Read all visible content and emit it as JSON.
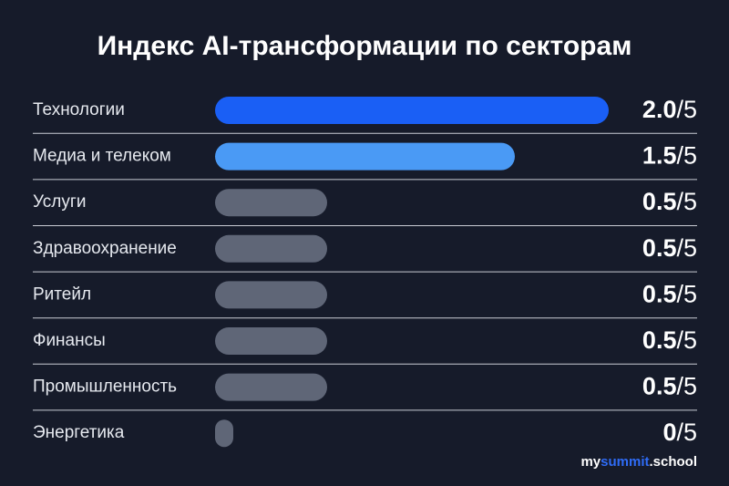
{
  "chart_data": {
    "type": "hbar",
    "title": "Индекс AI-трансформации по секторам",
    "categories": [
      "Технологии",
      "Медиа и телеком",
      "Услуги",
      "Здравоохранение",
      "Ритейл",
      "Финансы",
      "Промышленность",
      "Энергетика"
    ],
    "values": [
      2.0,
      1.5,
      0.5,
      0.5,
      0.5,
      0.5,
      0.5,
      0
    ],
    "value_labels": [
      "2.0",
      "1.5",
      "0.5",
      "0.5",
      "0.5",
      "0.5",
      "0.5",
      "0"
    ],
    "denominator": "/5",
    "colors": [
      "#1a5ff5",
      "#4a9af5",
      "#5f6677",
      "#5f6677",
      "#5f6677",
      "#5f6677",
      "#5f6677",
      "#5f6677"
    ]
  },
  "brand": [
    "my",
    "summit",
    ".school"
  ]
}
